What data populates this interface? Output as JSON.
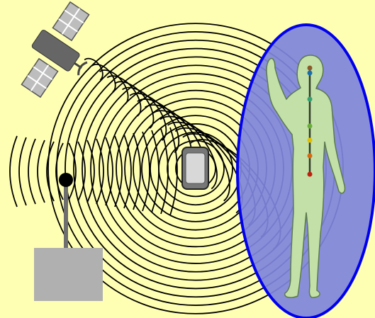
{
  "colors": {
    "background": "#ffffb4",
    "wave_stroke": "#000000",
    "aura_fill": "#7f84dc",
    "aura_stroke": "#0000ee",
    "body_fill": "#c2e0a8",
    "body_stroke": "#5c7a4c",
    "tower_box": "#b0b0b0",
    "tower_pole": "#6e6e6e",
    "satellite_body": "#666666",
    "solar_panel": "#bdbdbd",
    "phone_body": "#777777",
    "phone_screen": "#d8d8d8"
  },
  "chakras": [
    "#8a5a2a",
    "#1a6fa8",
    "#35a070",
    "#6aae3a",
    "#e0c000",
    "#d66a10",
    "#c02010"
  ],
  "icons": [
    "satellite-icon",
    "antenna-tower-icon",
    "mobile-phone-icon",
    "human-body-icon",
    "aura-ellipse"
  ]
}
